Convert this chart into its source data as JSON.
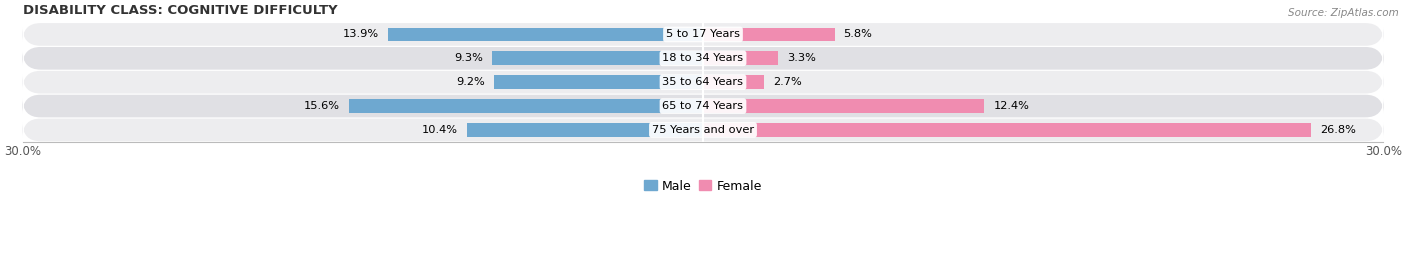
{
  "title": "DISABILITY CLASS: COGNITIVE DIFFICULTY",
  "source": "Source: ZipAtlas.com",
  "categories": [
    "5 to 17 Years",
    "18 to 34 Years",
    "35 to 64 Years",
    "65 to 74 Years",
    "75 Years and over"
  ],
  "male_values": [
    13.9,
    9.3,
    9.2,
    15.6,
    10.4
  ],
  "female_values": [
    5.8,
    3.3,
    2.7,
    12.4,
    26.8
  ],
  "xlim": [
    -30,
    30
  ],
  "male_color": "#6ea8d0",
  "female_color": "#f08cb0",
  "row_bg_light": "#ededef",
  "row_bg_dark": "#e0e0e4",
  "title_fontsize": 9.5,
  "label_fontsize": 8.2,
  "tick_fontsize": 8.5,
  "legend_fontsize": 9,
  "source_fontsize": 7.5
}
